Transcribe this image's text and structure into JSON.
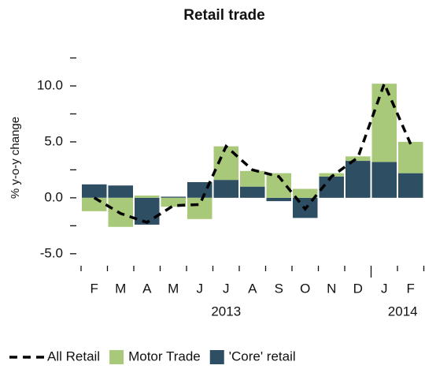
{
  "chart_data": {
    "type": "bar",
    "stacked": true,
    "title": "Retail trade",
    "y_label": "% y-o-y change",
    "categories": [
      "F",
      "M",
      "A",
      "M",
      "J",
      "J",
      "A",
      "S",
      "O",
      "N",
      "D",
      "J",
      "F"
    ],
    "year_labels": [
      "2013",
      "2014"
    ],
    "series": [
      {
        "name": "All Retail",
        "type": "line",
        "style": "dashed",
        "color": "#000000",
        "values": [
          0.0,
          -1.4,
          -2.2,
          -0.7,
          -0.6,
          4.6,
          2.5,
          1.9,
          -1.0,
          1.9,
          3.6,
          10.2,
          4.8
        ]
      },
      {
        "name": "Motor Trade",
        "type": "bar",
        "color": "#a9c97a",
        "values": [
          -1.2,
          -2.6,
          0.2,
          -0.8,
          -1.9,
          3.0,
          1.4,
          2.2,
          0.8,
          0.3,
          0.4,
          7.0,
          2.8
        ]
      },
      {
        "name": "'Core' retail",
        "type": "bar",
        "color": "#2e4e63",
        "values": [
          1.2,
          1.1,
          -2.4,
          0.1,
          1.4,
          1.6,
          1.0,
          -0.3,
          -1.8,
          1.9,
          3.3,
          3.2,
          2.2
        ]
      }
    ],
    "ylim": [
      -6,
      12.5
    ],
    "yticks": [
      {
        "value": -5,
        "label": "-5.0"
      },
      {
        "value": 0,
        "label": "0.0"
      },
      {
        "value": 5,
        "label": "5.0"
      },
      {
        "value": 10,
        "label": "10.0"
      }
    ],
    "minor_yticks": [
      -2.5,
      2.5,
      7.5,
      12.5
    ],
    "legend": "bottom"
  }
}
